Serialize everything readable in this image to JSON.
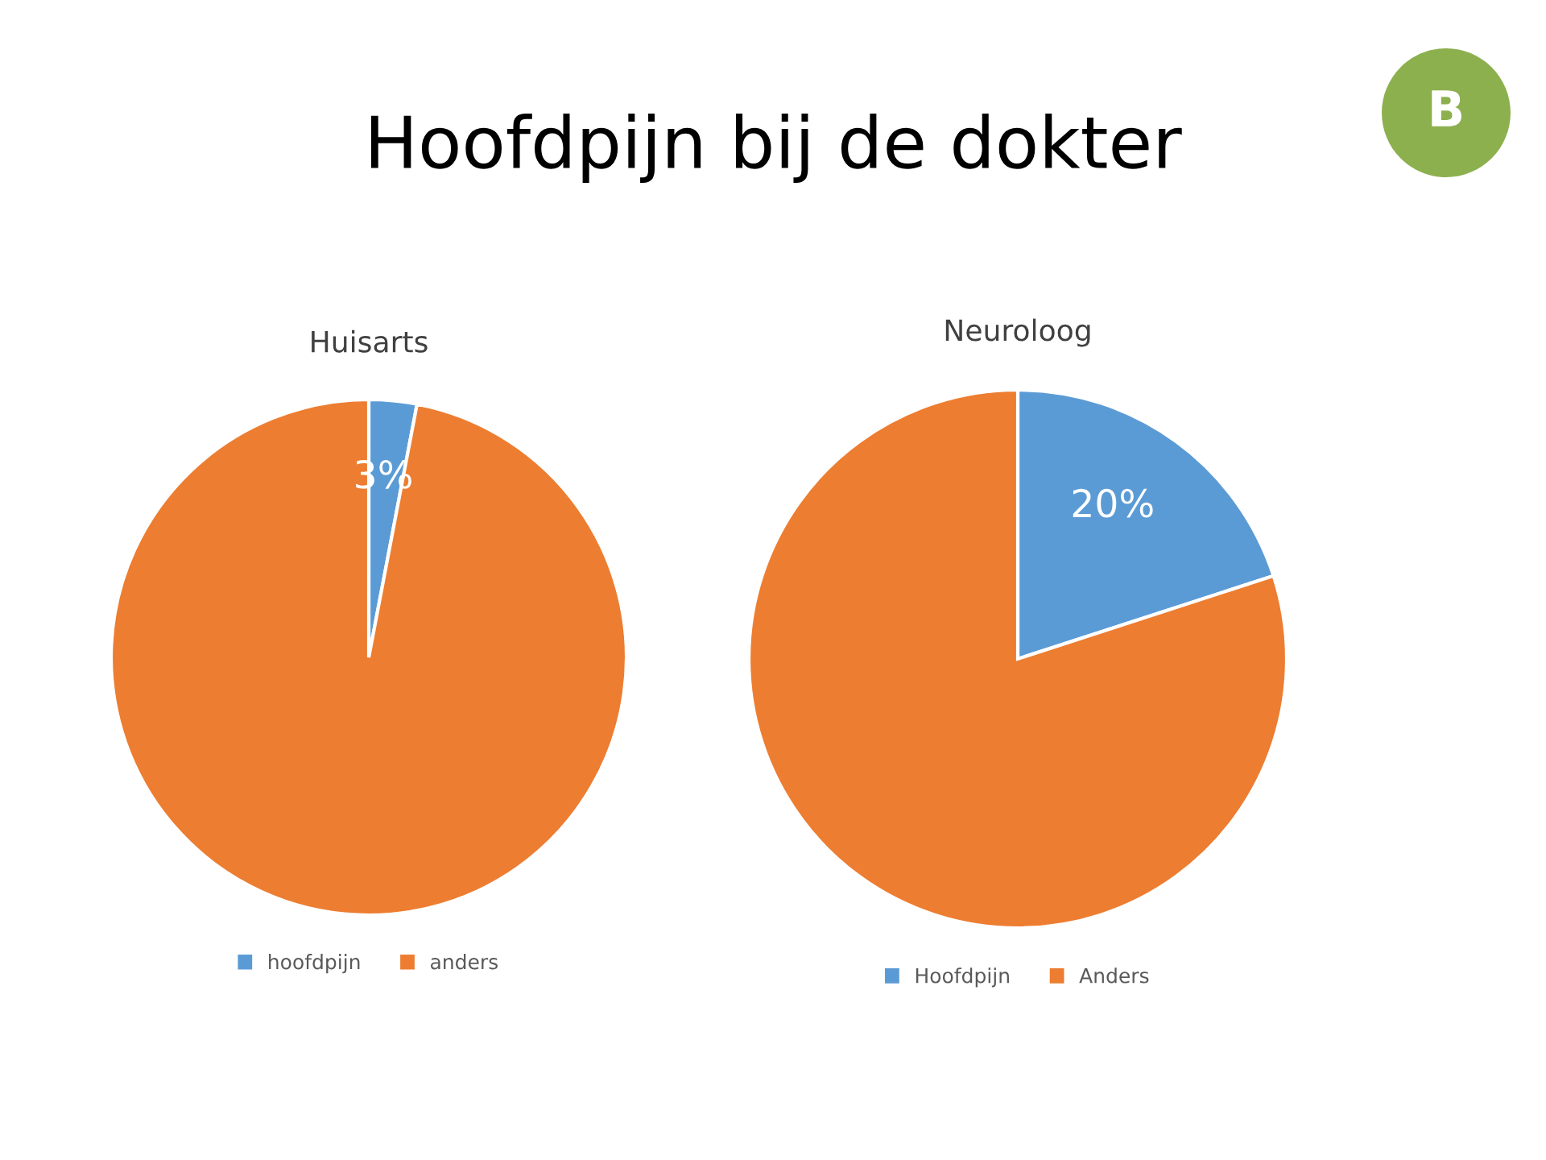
{
  "chart_data": [
    {
      "type": "pie",
      "title": "Huisarts",
      "categories": [
        "hoofdpijn",
        "anders"
      ],
      "values": [
        3,
        97
      ],
      "colors": [
        "#5b9bd5",
        "#ed7d31"
      ],
      "value_labels": [
        "3%",
        null
      ],
      "legend": "bottom",
      "annotations": [
        "Hoofdpijn bij de dokter",
        "B"
      ]
    },
    {
      "type": "pie",
      "title": "Neuroloog",
      "categories": [
        "Hoofdpijn",
        "Anders"
      ],
      "values": [
        20,
        80
      ],
      "colors": [
        "#5b9bd5",
        "#ed7d31"
      ],
      "value_labels": [
        "20%",
        null
      ],
      "legend": "bottom"
    }
  ]
}
